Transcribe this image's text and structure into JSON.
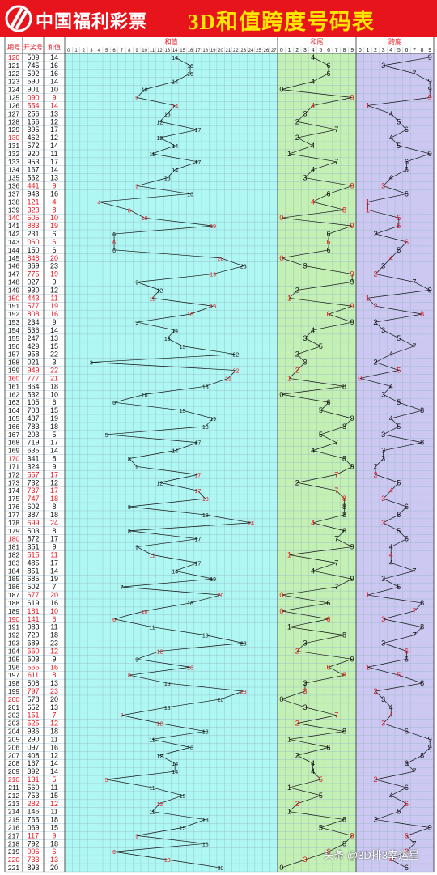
{
  "header": {
    "brand": "中国福利彩票",
    "title": "3D和值跨度号码表",
    "watermark": "头条 @3D排3幸运星"
  },
  "columns": {
    "period": "期号",
    "draw": "开奖号",
    "sum": "和值",
    "sum_band": "和值",
    "tail_band": "和尾",
    "span_band": "跨度"
  },
  "colors": {
    "header_bg": "#e8141c",
    "title": "#ffe600",
    "red": "#e8141c",
    "sum_bg": "#aef7f2",
    "tail_bg": "#c4f0b4",
    "span_bg": "#ccc8f2",
    "grid": "#96b8c8"
  },
  "chart_data": {
    "type": "table",
    "start_period": 120,
    "draws": [
      "509",
      "745",
      "592",
      "590",
      "901",
      "090",
      "554",
      "256",
      "156",
      "395",
      "462",
      "572",
      "920",
      "953",
      "167",
      "562",
      "441",
      "943",
      "121",
      "323",
      "505",
      "883",
      "231",
      "060",
      "150",
      "848",
      "869",
      "775",
      "027",
      "930",
      "443",
      "577",
      "808",
      "234",
      "536",
      "247",
      "429",
      "958",
      "021",
      "949",
      "777",
      "864",
      "532",
      "105",
      "708",
      "487",
      "783",
      "203",
      "719",
      "635",
      "341",
      "324",
      "557",
      "732",
      "737",
      "747",
      "602",
      "387",
      "699",
      "503",
      "872",
      "351",
      "515",
      "485",
      "851",
      "685",
      "502",
      "677",
      "619",
      "181",
      "141",
      "083",
      "729",
      "689",
      "660",
      "603",
      "565",
      "611",
      "508",
      "797",
      "578",
      "652",
      "151",
      "525",
      "936",
      "290",
      "097",
      "408",
      "167",
      "392",
      "131",
      "560",
      "753",
      "282",
      "146",
      "765",
      "069",
      "117",
      "792",
      "006",
      "733",
      "893"
    ],
    "sum_range": [
      0,
      27
    ],
    "tail_range": [
      0,
      9
    ],
    "span_range": [
      0,
      9
    ]
  }
}
